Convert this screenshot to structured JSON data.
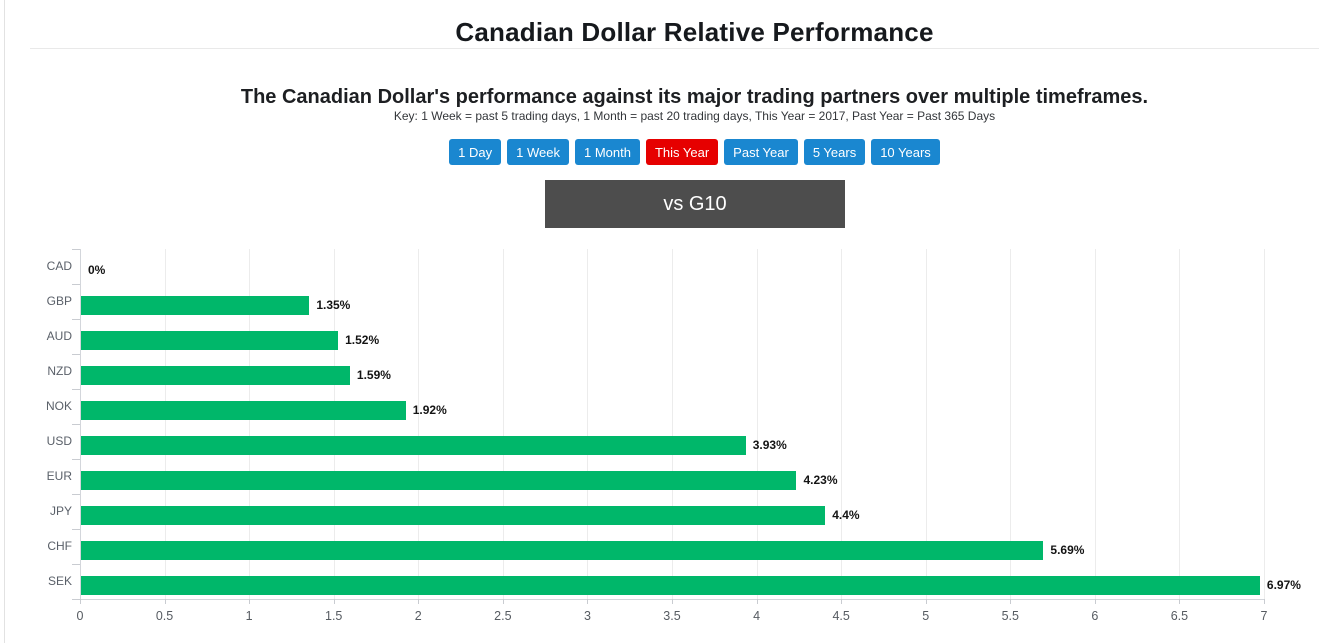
{
  "page": {
    "title": "Canadian Dollar Relative Performance",
    "subtitle": "The Canadian Dollar's performance against its major trading partners over multiple timeframes.",
    "key_note": "Key: 1 Week = past 5 trading days, 1 Month = past 20 trading days, This Year = 2017, Past Year = Past 365 Days"
  },
  "timeframe_buttons": [
    {
      "label": "1 Day",
      "active": false
    },
    {
      "label": "1 Week",
      "active": false
    },
    {
      "label": "1 Month",
      "active": false
    },
    {
      "label": "This Year",
      "active": true
    },
    {
      "label": "Past Year",
      "active": false
    },
    {
      "label": "5 Years",
      "active": false
    },
    {
      "label": "10 Years",
      "active": false
    }
  ],
  "group_header": {
    "label": "vs G10"
  },
  "colors": {
    "button_blue": "#1a87d0",
    "button_active_red": "#e60000",
    "group_header_bg": "#4d4d4d",
    "bar_green": "#00b76a"
  },
  "chart_data": {
    "type": "bar",
    "orientation": "horizontal",
    "title": "vs G10",
    "categories": [
      "CAD",
      "GBP",
      "AUD",
      "NZD",
      "NOK",
      "USD",
      "EUR",
      "JPY",
      "CHF",
      "SEK"
    ],
    "values": [
      0,
      1.35,
      1.52,
      1.59,
      1.92,
      3.93,
      4.23,
      4.4,
      5.69,
      6.97
    ],
    "value_labels": [
      "0%",
      "1.35%",
      "1.52%",
      "1.59%",
      "1.92%",
      "3.93%",
      "4.23%",
      "4.4%",
      "5.69%",
      "6.97%"
    ],
    "xlabel": "",
    "ylabel": "",
    "xlim": [
      0,
      7
    ],
    "x_tick_step": 0.5,
    "x_tick_labels": [
      "0",
      "0.5",
      "1",
      "1.5",
      "2",
      "2.5",
      "3",
      "3.5",
      "4",
      "4.5",
      "5",
      "5.5",
      "6",
      "6.5",
      "7"
    ],
    "grid": true,
    "legend": false
  }
}
